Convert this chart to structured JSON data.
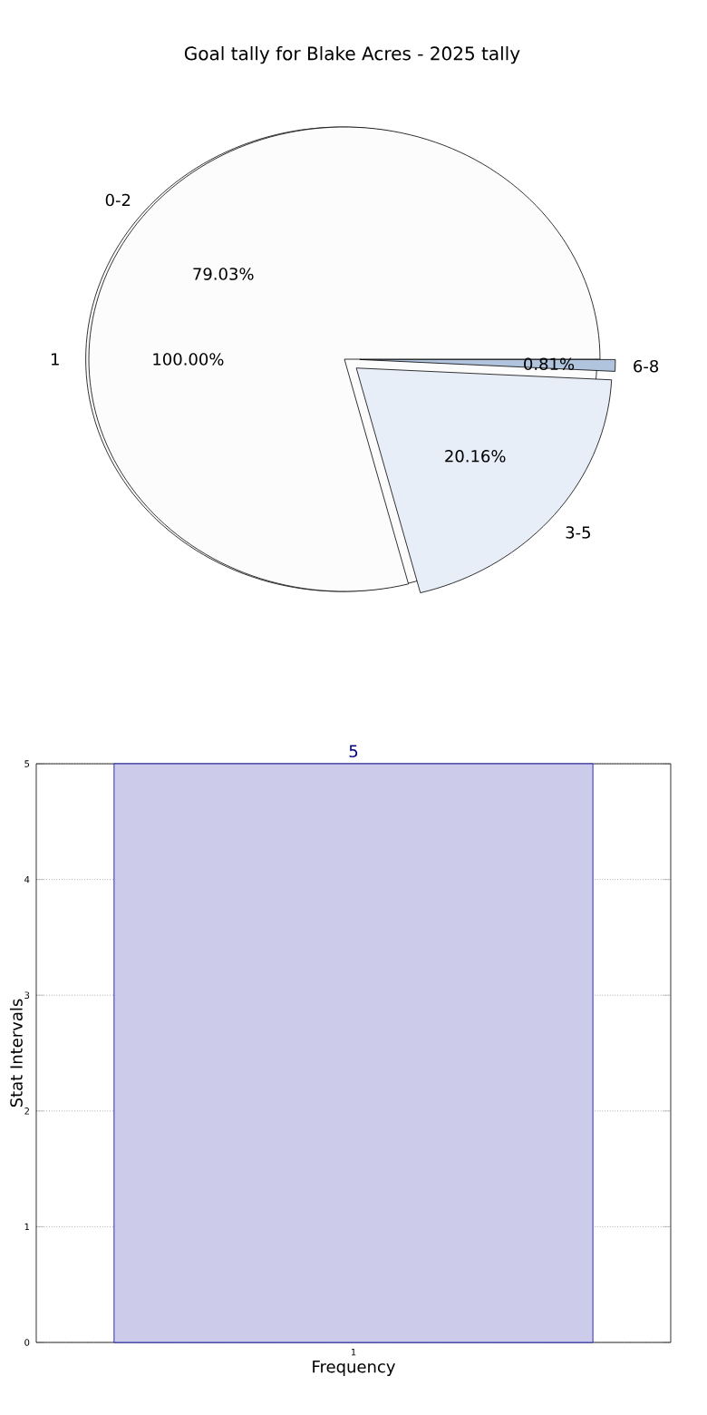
{
  "chart_data": [
    {
      "type": "pie",
      "title": "Goal tally for Blake Acres - 2025 tally",
      "categories": [
        "0-2",
        "3-5",
        "6-8"
      ],
      "values": [
        79.03,
        20.16,
        0.81
      ],
      "value_labels": [
        "79.03%",
        "20.16%",
        "0.81%"
      ],
      "colors": [
        "#fcfcfc",
        "#e8eef8",
        "#b0c4de"
      ]
    },
    {
      "type": "pie",
      "categories": [
        "1"
      ],
      "values": [
        100
      ],
      "value_labels": [
        "100.00%"
      ],
      "colors": [
        "#fcfcfc"
      ]
    },
    {
      "type": "bar",
      "categories": [
        "1"
      ],
      "values": [
        5
      ],
      "color": "#ccccea",
      "xlabel": "Frequency",
      "ylabel": "Stat Intervals",
      "ylim": [
        0,
        5
      ],
      "yticks": [
        0,
        1,
        2,
        3,
        4,
        5
      ],
      "grid": true,
      "data_labels": true
    }
  ]
}
